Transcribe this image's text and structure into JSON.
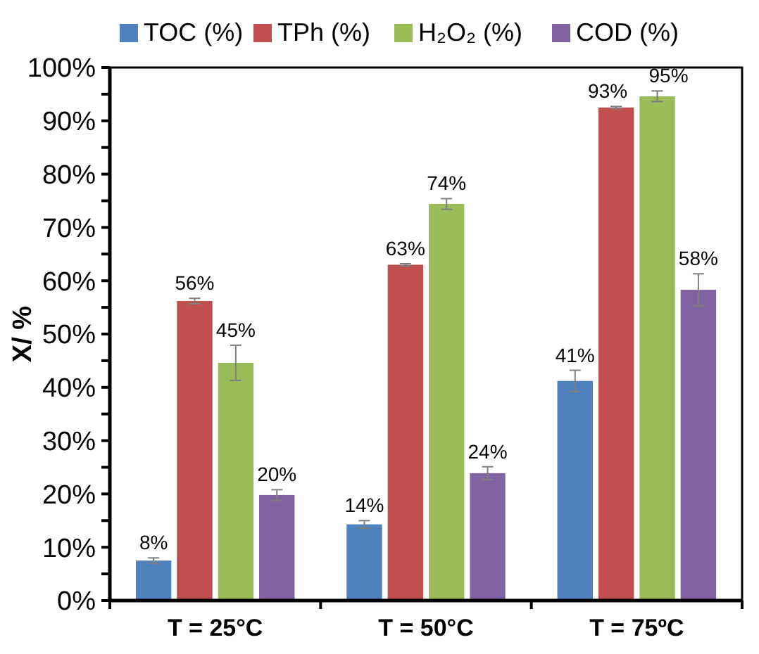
{
  "chart_data": {
    "type": "bar",
    "categories": [
      "T = 25°C",
      "T = 50°C",
      "T = 75ºC"
    ],
    "ylabel": "X/ %",
    "ylim": [
      0,
      100
    ],
    "yticks": [
      {
        "value": 0,
        "label": "0%"
      },
      {
        "value": 5,
        "label": null
      },
      {
        "value": 10,
        "label": "10%"
      },
      {
        "value": 15,
        "label": null
      },
      {
        "value": 20,
        "label": "20%"
      },
      {
        "value": 25,
        "label": null
      },
      {
        "value": 30,
        "label": "30%"
      },
      {
        "value": 35,
        "label": null
      },
      {
        "value": 40,
        "label": "40%"
      },
      {
        "value": 45,
        "label": null
      },
      {
        "value": 50,
        "label": "50%"
      },
      {
        "value": 55,
        "label": null
      },
      {
        "value": 60,
        "label": "60%"
      },
      {
        "value": 65,
        "label": null
      },
      {
        "value": 70,
        "label": "70%"
      },
      {
        "value": 75,
        "label": null
      },
      {
        "value": 80,
        "label": "80%"
      },
      {
        "value": 85,
        "label": null
      },
      {
        "value": 90,
        "label": "90%"
      },
      {
        "value": 95,
        "label": null
      },
      {
        "value": 100,
        "label": "100%"
      }
    ],
    "legend": "top",
    "grid": false,
    "series": [
      {
        "name": "TOC (%)",
        "color": "#4f81bd",
        "values": [
          7.5,
          14.3,
          41.2
        ],
        "errors": [
          0.5,
          0.7,
          2
        ],
        "value_labels": [
          "8%",
          "14%",
          "41%"
        ]
      },
      {
        "name": "TPh (%)",
        "color": "#c0504d",
        "values": [
          56.2,
          63,
          92.5
        ],
        "errors": [
          0.5,
          0.2,
          0.2
        ],
        "value_labels": [
          "56%",
          "63%",
          "93%"
        ]
      },
      {
        "name": "H₂O₂ (%)",
        "color": "#9bbb59",
        "values": [
          44.6,
          74.4,
          94.6
        ],
        "errors": [
          3.3,
          1,
          1
        ],
        "value_labels": [
          "45%",
          "74%",
          "95%"
        ]
      },
      {
        "name": "COD (%)",
        "color": "#8064a2",
        "values": [
          19.8,
          23.9,
          58.3
        ],
        "errors": [
          1,
          1.2,
          3
        ],
        "value_labels": [
          "20%",
          "24%",
          "58%"
        ]
      }
    ]
  }
}
